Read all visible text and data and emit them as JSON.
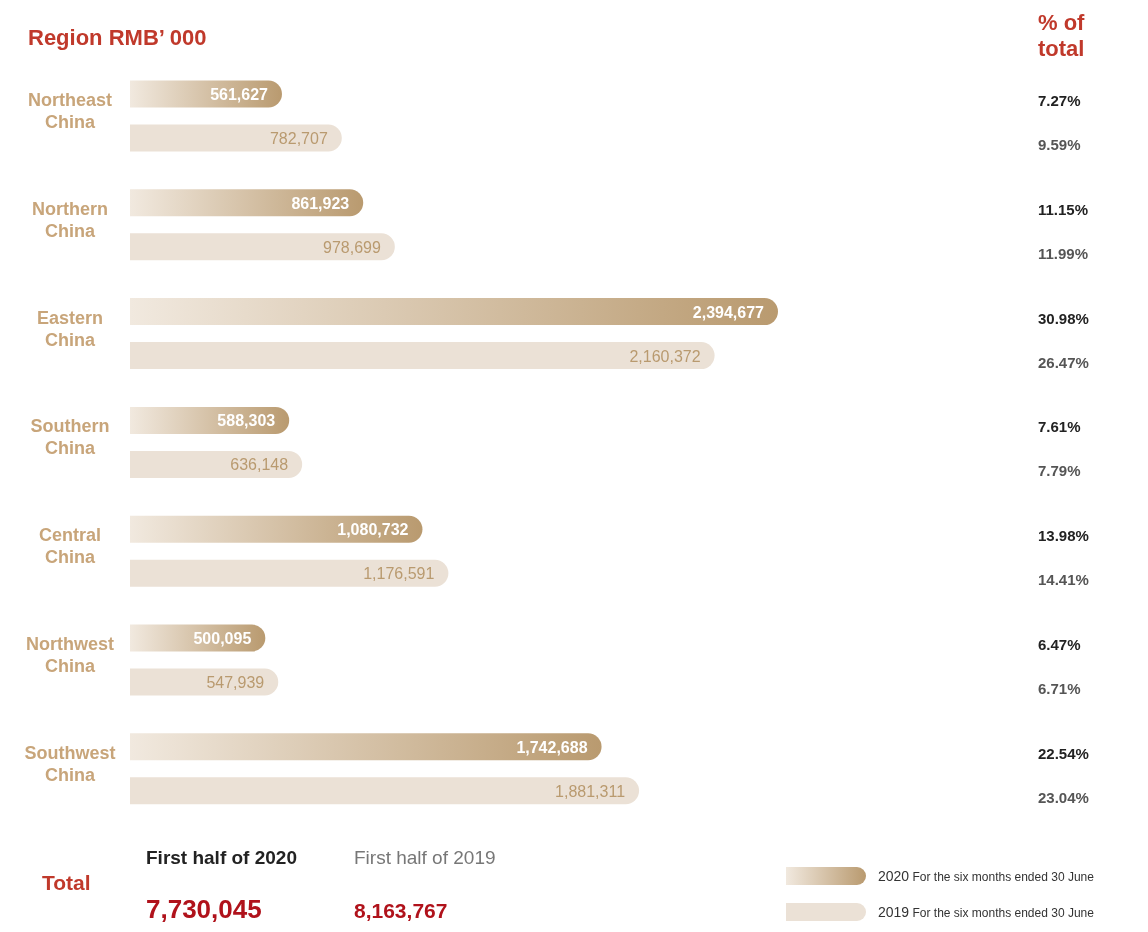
{
  "chart_data": {
    "type": "bar",
    "orientation": "horizontal",
    "title": "Region  RMB’ 000",
    "categories": [
      "Northeast China",
      "Northern China",
      "Eastern China",
      "Southern China",
      "Central China",
      "Northwest China",
      "Southwest China"
    ],
    "series": [
      {
        "name": "2020 For the six months ended 30 June",
        "color": "#b99a6f",
        "values": [
          561627,
          861923,
          2394677,
          588303,
          1080732,
          500095,
          1742688
        ],
        "value_labels": [
          "561,627",
          "861,923",
          "2,394,677",
          "588,303",
          "1,080,732",
          "500,095",
          "1,742,688"
        ]
      },
      {
        "name": "2019 For the six months ended 30 June",
        "color": "#ebe1d6",
        "values": [
          782707,
          978699,
          2160372,
          636148,
          1176591,
          547939,
          1881311
        ],
        "value_labels": [
          "782,707",
          "978,699",
          "2,160,372",
          "636,148",
          "1,176,591",
          "547,939",
          "1,881,311"
        ]
      }
    ],
    "legend": "bottom right",
    "annotations": [
      "% of total",
      "7.27%",
      "9.59%",
      "11.15%",
      "11.99%",
      "30.98%",
      "26.47%",
      "7.61%",
      "7.79%",
      "13.98%",
      "14.41%",
      "6.47%",
      "6.71%",
      "22.54%",
      "23.04%",
      "Total",
      "First half of 2020",
      "7,730,045",
      "First half of 2019",
      "8,163,767"
    ]
  }
}
